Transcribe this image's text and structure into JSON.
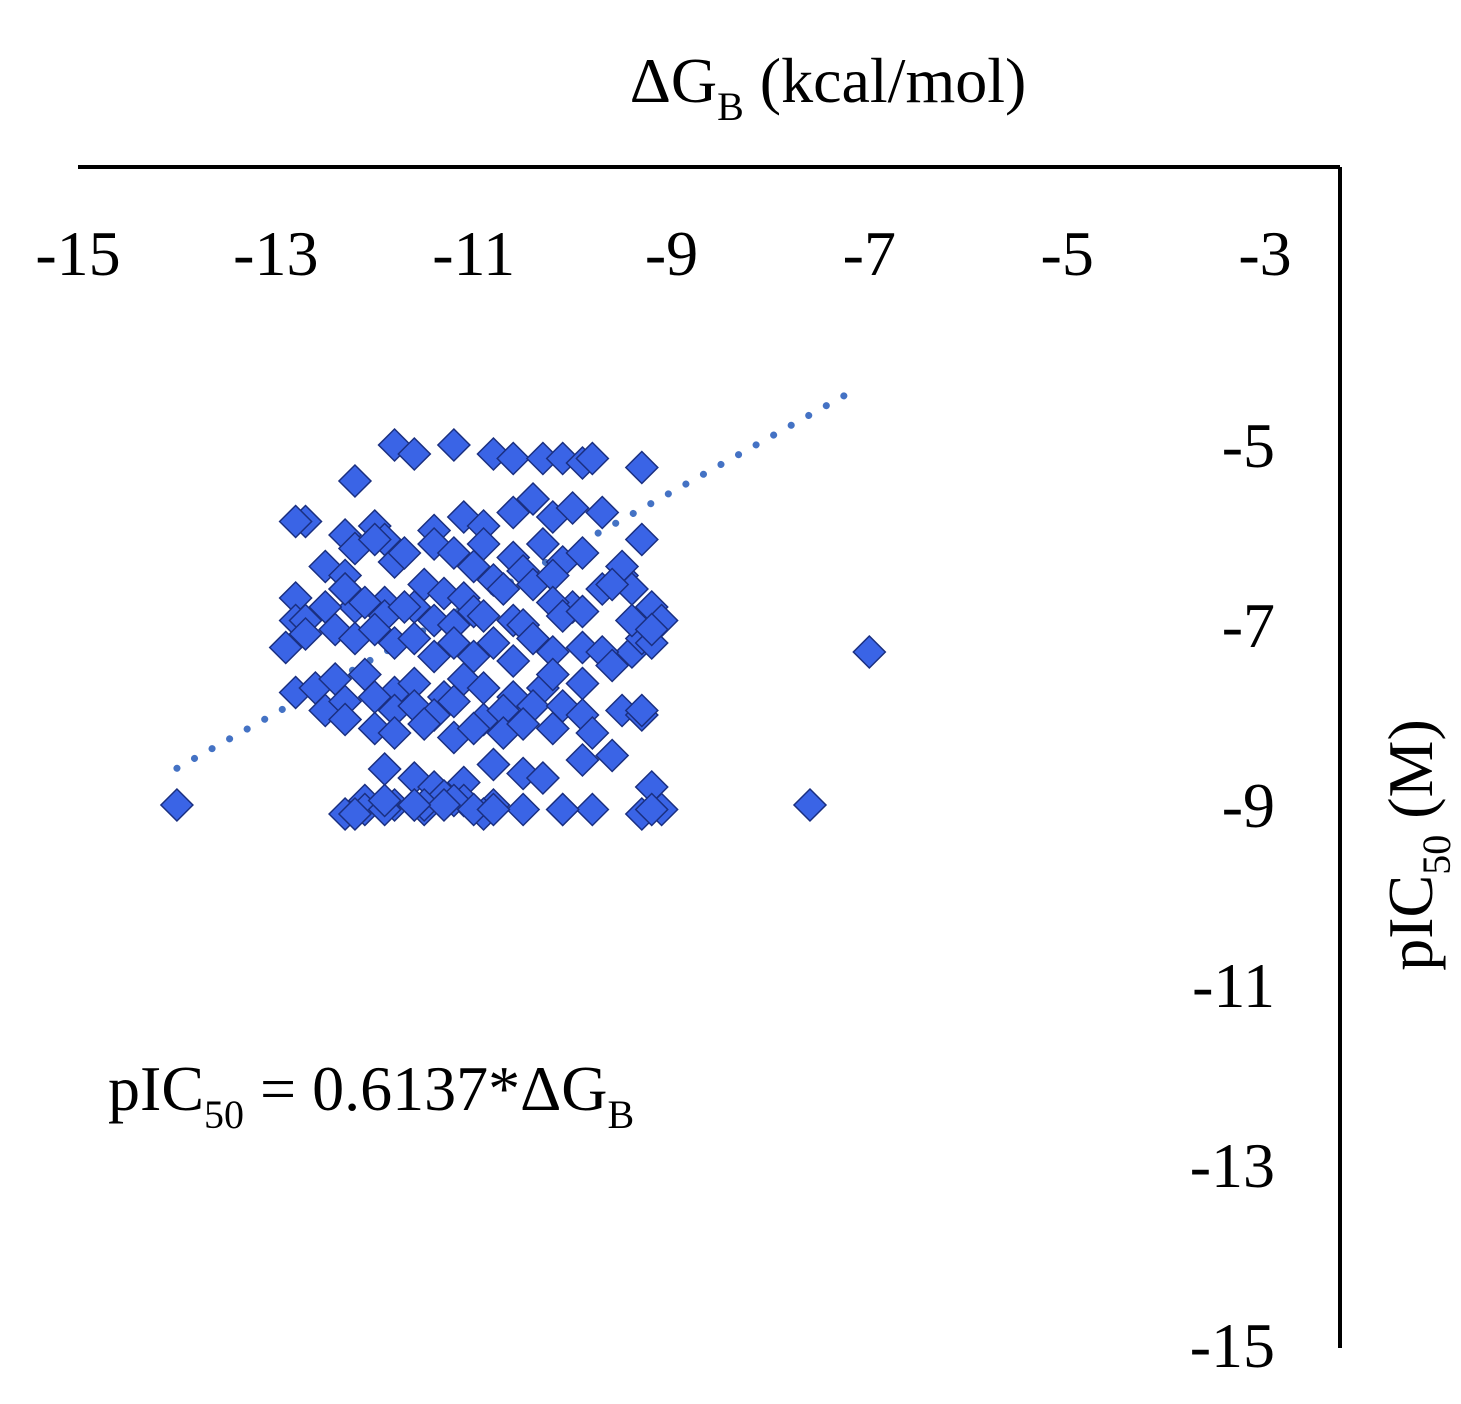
{
  "chart_data": {
    "type": "scatter",
    "title": "",
    "xlabel": {
      "main": "ΔG",
      "sub": "B",
      "tail": " (kcal/mol)"
    },
    "ylabel": {
      "main": "pIC",
      "sub": "50",
      "tail": " (M)"
    },
    "xlim": [
      -15,
      -3
    ],
    "ylim": [
      -15,
      -3
    ],
    "x_ticks": [
      "-15",
      "-13",
      "-11",
      "-9",
      "-7",
      "-5",
      "-3"
    ],
    "y_ticks": [
      "-3",
      "-5",
      "-7",
      "-9",
      "-11",
      "-13",
      "-15"
    ],
    "axis_positions": {
      "x_axis": "top",
      "y_axis": "right"
    },
    "grid": false,
    "legend": "none",
    "marker": "diamond",
    "marker_color": "#3a64e6",
    "marker_edge_color": "#1a2f80",
    "trendline": {
      "style": "dotted",
      "color": "#4472c4",
      "equation": {
        "lhs_main": "pIC",
        "lhs_sub": "50",
        "mid": " = 0.6137*ΔG",
        "rhs_sub": "B"
      },
      "slope": 0.6137,
      "x_range": [
        -14,
        -7.1
      ]
    },
    "series": [
      {
        "x": [
          -14.0,
          -12.7,
          -12.2,
          -11.8,
          -11.6,
          -11.2,
          -10.8,
          -10.6,
          -10.3,
          -10.1,
          -9.9,
          -9.8,
          -9.3,
          -12.8,
          -12.3,
          -12.0,
          -11.9,
          -11.4,
          -11.1,
          -10.9,
          -10.6,
          -10.4,
          -10.2,
          -10.0,
          -9.7,
          -9.3,
          -12.8,
          -12.5,
          -12.3,
          -12.2,
          -12.0,
          -11.8,
          -11.7,
          -11.4,
          -11.2,
          -11.0,
          -10.9,
          -10.6,
          -10.5,
          -10.3,
          -10.1,
          -9.9,
          -9.5,
          -9.2,
          -9.1,
          -12.8,
          -12.3,
          -12.2,
          -11.9,
          -11.6,
          -11.5,
          -11.3,
          -11.1,
          -10.8,
          -10.7,
          -10.4,
          -10.2,
          -10.0,
          -9.7,
          -9.5,
          -9.4,
          -12.7,
          -12.5,
          -12.3,
          -12.1,
          -11.9,
          -11.7,
          -11.4,
          -11.2,
          -11.0,
          -10.9,
          -10.6,
          -10.5,
          -10.2,
          -10.1,
          -9.9,
          -9.6,
          -9.4,
          -9.3,
          -9.2,
          -7.0,
          -12.9,
          -12.7,
          -12.4,
          -12.2,
          -12.0,
          -11.8,
          -11.6,
          -11.4,
          -11.2,
          -11.0,
          -10.8,
          -10.6,
          -10.4,
          -10.2,
          -9.9,
          -9.7,
          -9.4,
          -9.2,
          -12.8,
          -12.6,
          -12.4,
          -12.1,
          -11.8,
          -11.6,
          -11.3,
          -11.1,
          -10.9,
          -10.6,
          -10.3,
          -10.2,
          -9.9,
          -9.6,
          -12.5,
          -12.3,
          -12.0,
          -11.8,
          -11.6,
          -11.4,
          -11.2,
          -10.9,
          -10.7,
          -10.4,
          -10.1,
          -9.9,
          -9.5,
          -9.3,
          -12.3,
          -12.0,
          -11.8,
          -11.5,
          -11.2,
          -11.0,
          -10.7,
          -10.5,
          -10.2,
          -9.8,
          -9.3,
          -11.9,
          -11.6,
          -11.4,
          -11.1,
          -10.8,
          -10.5,
          -10.3,
          -9.9,
          -9.6,
          -9.2,
          -12.1,
          -11.8,
          -11.5,
          -11.3,
          -11.1,
          -10.8,
          -10.5,
          -10.1,
          -9.8,
          -9.3,
          -9.1,
          -11.5,
          -11.2,
          -10.9,
          -12.3,
          -12.1,
          -11.9,
          -11.6,
          -11.3,
          -11.0,
          -10.8,
          -10.1,
          -9.2,
          -7.6,
          -12.2,
          -11.9,
          -11.6
        ],
        "y": [
          -9.0,
          -5.85,
          -5.4,
          -5.0,
          -5.1,
          -5.0,
          -5.1,
          -5.15,
          -5.15,
          -5.15,
          -5.2,
          -5.15,
          -5.25,
          -5.85,
          -6.0,
          -5.9,
          -6.05,
          -5.95,
          -5.8,
          -5.9,
          -5.75,
          -5.6,
          -5.8,
          -5.7,
          -5.75,
          -6.05,
          -6.7,
          -6.35,
          -6.45,
          -6.15,
          -6.05,
          -6.3,
          -6.2,
          -6.1,
          -6.2,
          -6.35,
          -6.1,
          -6.25,
          -6.4,
          -6.1,
          -6.3,
          -6.2,
          -6.45,
          -6.8,
          -6.95,
          -6.95,
          -6.6,
          -6.8,
          -6.75,
          -6.8,
          -6.55,
          -6.65,
          -6.7,
          -6.5,
          -6.6,
          -6.55,
          -6.45,
          -6.8,
          -6.6,
          -6.35,
          -6.6,
          -6.95,
          -6.8,
          -6.6,
          -6.75,
          -6.9,
          -6.8,
          -6.95,
          -7.0,
          -6.85,
          -6.9,
          -6.95,
          -7.0,
          -6.75,
          -6.9,
          -6.85,
          -6.55,
          -7.3,
          -7.15,
          -7.2,
          -7.3,
          -7.25,
          -7.1,
          -7.05,
          -7.15,
          -7.05,
          -7.2,
          -7.15,
          -7.35,
          -7.2,
          -7.35,
          -7.2,
          -7.4,
          -7.15,
          -7.3,
          -7.25,
          -7.3,
          -6.95,
          -7.05,
          -7.75,
          -7.7,
          -7.6,
          -7.55,
          -7.75,
          -7.65,
          -7.8,
          -7.6,
          -7.7,
          -7.8,
          -7.7,
          -7.55,
          -7.65,
          -7.45,
          -7.95,
          -7.85,
          -7.8,
          -7.95,
          -7.9,
          -8.0,
          -7.85,
          -8.05,
          -7.95,
          -7.9,
          -7.9,
          -8.0,
          -7.95,
          -8.0,
          -8.05,
          -8.15,
          -8.2,
          -8.1,
          -8.25,
          -8.15,
          -8.2,
          -8.1,
          -8.15,
          -8.2,
          -7.95,
          -8.6,
          -8.7,
          -8.8,
          -8.75,
          -8.55,
          -8.65,
          -8.7,
          -8.5,
          -8.45,
          -8.8,
          -8.95,
          -9.0,
          -9.05,
          -8.9,
          -8.95,
          -9.0,
          -9.05,
          -9.05,
          -9.05,
          -9.1,
          -9.05,
          -9.0,
          -8.95,
          -9.1,
          -9.1,
          -9.05,
          -9.05,
          -9.0,
          -9.0,
          -9.05,
          -9.05,
          -9.05,
          -9.05,
          -9.0,
          -9.1,
          -8.95,
          -9.0
        ]
      }
    ]
  }
}
